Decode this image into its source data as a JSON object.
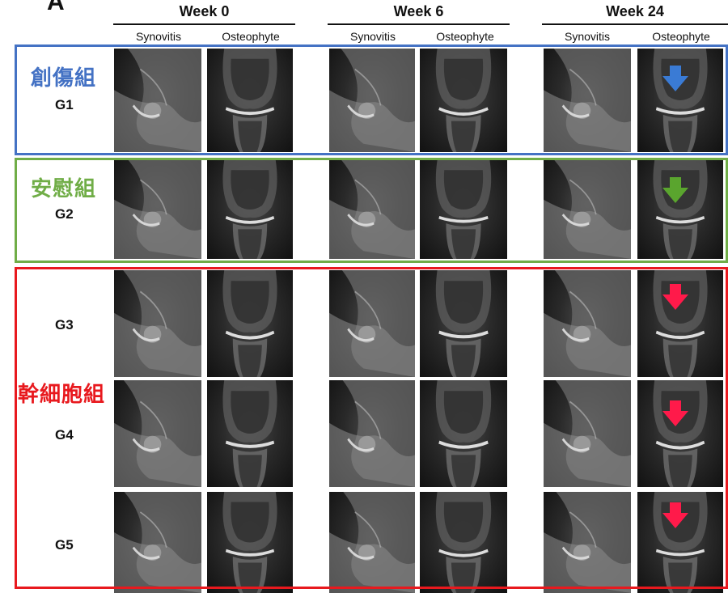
{
  "panel_letter": "A",
  "weeks": [
    "Week 0",
    "Week 6",
    "Week 24"
  ],
  "sub_headers": [
    "Synovitis",
    "Osteophyte"
  ],
  "groups": {
    "injury": {
      "title": "創傷組",
      "color": "#4472c4"
    },
    "placebo": {
      "title": "安慰組",
      "color": "#70ad47"
    },
    "stem": {
      "title": "幹細胞組",
      "color": "#e8191e"
    }
  },
  "row_labels": [
    "G1",
    "G2",
    "G3",
    "G4",
    "G5"
  ],
  "arrows": [
    {
      "row": "G1",
      "color": "#3a7bd5",
      "icon": "arrow-down-icon"
    },
    {
      "row": "G2",
      "color": "#5aa52e",
      "icon": "arrow-down-icon"
    },
    {
      "row": "G3",
      "color": "#ff1a4a",
      "icon": "arrow-down-icon"
    },
    {
      "row": "G4",
      "color": "#ff1a4a",
      "icon": "arrow-down-icon"
    },
    {
      "row": "G5",
      "color": "#ff1a4a",
      "icon": "arrow-down-icon"
    }
  ]
}
